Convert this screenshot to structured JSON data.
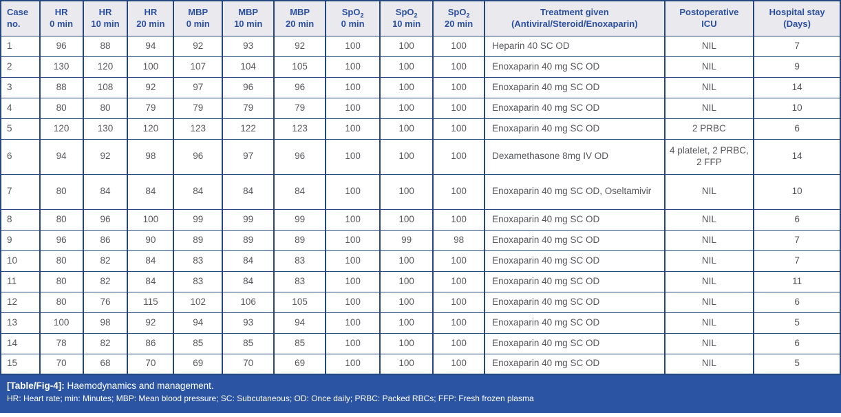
{
  "colors": {
    "grid_border": "#26477d",
    "header_bg": "#e9e9ee",
    "header_text": "#2b4fa0",
    "body_text": "#56575b",
    "caption_bg": "#2b54a3",
    "caption_text": "#ffffff"
  },
  "table": {
    "columns": [
      {
        "key": "case-no",
        "top": "Case",
        "sub": "",
        "bottom": "no."
      },
      {
        "key": "hr-0min",
        "top": "HR",
        "sub": "",
        "bottom": "0 min"
      },
      {
        "key": "hr-10min",
        "top": "HR",
        "sub": "",
        "bottom": "10 min"
      },
      {
        "key": "hr-20min",
        "top": "HR",
        "sub": "",
        "bottom": "20 min"
      },
      {
        "key": "mbp-0min",
        "top": "MBP",
        "sub": "",
        "bottom": "0 min"
      },
      {
        "key": "mbp-10min",
        "top": "MBP",
        "sub": "",
        "bottom": "10 min"
      },
      {
        "key": "mbp-20min",
        "top": "MBP",
        "sub": "",
        "bottom": "20 min"
      },
      {
        "key": "spo2-0min",
        "top": "SpO",
        "sub": "2",
        "bottom": "0 min"
      },
      {
        "key": "spo2-10min",
        "top": "SpO",
        "sub": "2",
        "bottom": "10 min"
      },
      {
        "key": "spo2-20min",
        "top": "SpO",
        "sub": "2",
        "bottom": "20 min"
      },
      {
        "key": "treatment",
        "top": "Treatment given",
        "sub": "",
        "bottom": "(Antiviral/Steroid/Enoxaparin)"
      },
      {
        "key": "postop-icu",
        "top": "Postoperative",
        "sub": "",
        "bottom": "ICU"
      },
      {
        "key": "hospital-stay",
        "top": "Hospital stay",
        "sub": "",
        "bottom": "(Days)"
      }
    ],
    "rows": [
      [
        "1",
        "96",
        "88",
        "94",
        "92",
        "93",
        "92",
        "100",
        "100",
        "100",
        "Heparin 40 SC OD",
        "NIL",
        "7"
      ],
      [
        "2",
        "130",
        "120",
        "100",
        "107",
        "104",
        "105",
        "100",
        "100",
        "100",
        "Enoxaparin 40 mg SC OD",
        "NIL",
        "9"
      ],
      [
        "3",
        "88",
        "108",
        "92",
        "97",
        "96",
        "96",
        "100",
        "100",
        "100",
        "Enoxaparin 40 mg SC OD",
        "NIL",
        "14"
      ],
      [
        "4",
        "80",
        "80",
        "79",
        "79",
        "79",
        "79",
        "100",
        "100",
        "100",
        "Enoxaparin 40 mg SC OD",
        "NIL",
        "10"
      ],
      [
        "5",
        "120",
        "130",
        "120",
        "123",
        "122",
        "123",
        "100",
        "100",
        "100",
        "Enoxaparin 40 mg SC OD",
        "2 PRBC",
        "6"
      ],
      [
        "6",
        "94",
        "92",
        "98",
        "96",
        "97",
        "96",
        "100",
        "100",
        "100",
        "Dexamethasone 8mg IV OD",
        "4 platelet, 2 PRBC, 2 FFP",
        "14"
      ],
      [
        "7",
        "80",
        "84",
        "84",
        "84",
        "84",
        "84",
        "100",
        "100",
        "100",
        "Enoxaparin 40 mg SC OD, Oseltamivir",
        "NIL",
        "10"
      ],
      [
        "8",
        "80",
        "96",
        "100",
        "99",
        "99",
        "99",
        "100",
        "100",
        "100",
        "Enoxaparin 40 mg SC OD",
        "NIL",
        "6"
      ],
      [
        "9",
        "96",
        "86",
        "90",
        "89",
        "89",
        "89",
        "100",
        "99",
        "98",
        "Enoxaparin 40 mg SC OD",
        "NIL",
        "7"
      ],
      [
        "10",
        "80",
        "82",
        "84",
        "83",
        "84",
        "83",
        "100",
        "100",
        "100",
        "Enoxaparin 40 mg SC OD",
        "NIL",
        "7"
      ],
      [
        "11",
        "80",
        "82",
        "84",
        "83",
        "84",
        "83",
        "100",
        "100",
        "100",
        "Enoxaparin 40 mg SC OD",
        "NIL",
        "11"
      ],
      [
        "12",
        "80",
        "76",
        "115",
        "102",
        "106",
        "105",
        "100",
        "100",
        "100",
        "Enoxaparin 40 mg SC OD",
        "NIL",
        "6"
      ],
      [
        "13",
        "100",
        "98",
        "92",
        "94",
        "93",
        "94",
        "100",
        "100",
        "100",
        "Enoxaparin 40 mg SC OD",
        "NIL",
        "5"
      ],
      [
        "14",
        "78",
        "82",
        "86",
        "85",
        "85",
        "85",
        "100",
        "100",
        "100",
        "Enoxaparin 40 mg SC OD",
        "NIL",
        "6"
      ],
      [
        "15",
        "70",
        "68",
        "70",
        "69",
        "70",
        "69",
        "100",
        "100",
        "100",
        "Enoxaparin 40 mg SC OD",
        "NIL",
        "5"
      ]
    ]
  },
  "caption": {
    "label": "[Table/Fig-4]:",
    "title": "Haemodynamics and management.",
    "abbreviations": "HR: Heart rate; min: Minutes; MBP: Mean blood pressure; SC: Subcutaneous; OD: Once daily; PRBC: Packed RBCs; FFP: Fresh frozen plasma"
  }
}
